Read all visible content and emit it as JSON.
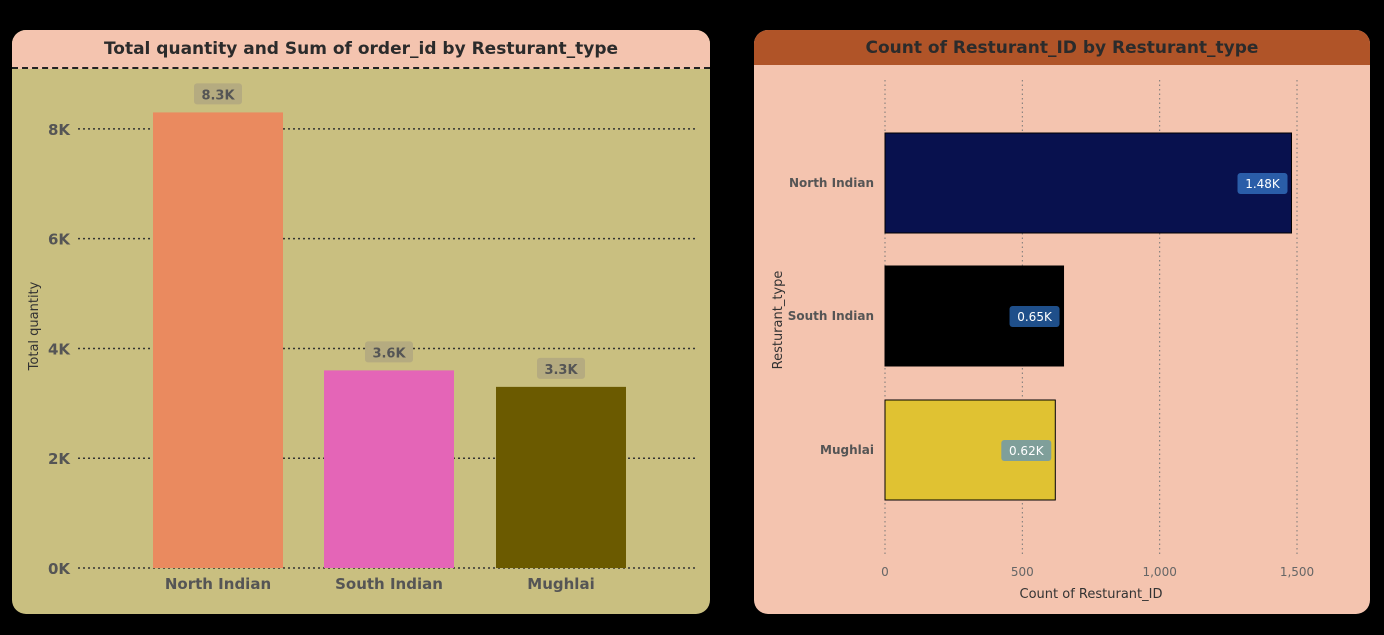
{
  "chart_data": [
    {
      "type": "bar",
      "title": "Total quantity and Sum of order_id by Resturant_type",
      "ylabel": "Total quantity",
      "xlabel": "",
      "categories": [
        "North Indian",
        "South Indian",
        "Mughlai"
      ],
      "values": [
        8300,
        3600,
        3300
      ],
      "data_labels": [
        "8.3K",
        "3.6K",
        "3.3K"
      ],
      "yticks": [
        0,
        2000,
        4000,
        6000,
        8000
      ],
      "ytick_labels": [
        "0K",
        "2K",
        "4K",
        "6K",
        "8K"
      ],
      "ylim": [
        0,
        9000
      ],
      "grid": true,
      "bar_colors": [
        "#ea8a5f",
        "#e465b7",
        "#6b5a00"
      ]
    },
    {
      "type": "bar",
      "orientation": "horizontal",
      "title": "Count of Resturant_ID by Resturant_type",
      "xlabel": "Count of Resturant_ID",
      "ylabel": "Resturant_type",
      "categories": [
        "North Indian",
        "South Indian",
        "Mughlai"
      ],
      "values": [
        1480,
        650,
        620
      ],
      "data_labels": [
        "1.48K",
        "0.65K",
        "0.62K"
      ],
      "xticks": [
        0,
        500,
        1000,
        1500
      ],
      "xtick_labels": [
        "0",
        "500",
        "1,000",
        "1,500"
      ],
      "xlim": [
        0,
        1500
      ],
      "grid": true,
      "bar_colors": [
        "#08114e",
        "#000000",
        "#e0c232"
      ],
      "label_colors": [
        "#2a5da8",
        "#1f4f8a",
        "#7f9f9a"
      ]
    }
  ]
}
